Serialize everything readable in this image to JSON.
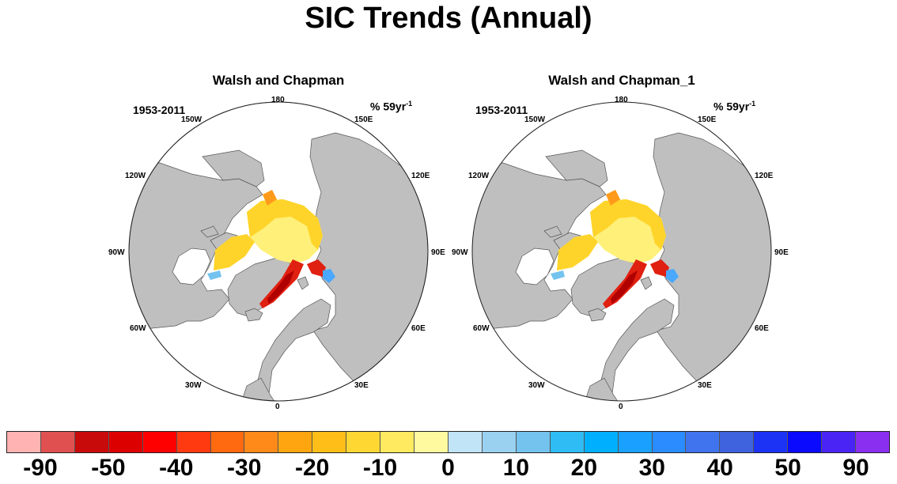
{
  "title": "SIC Trends (Annual)",
  "panels": [
    {
      "title": "Walsh and Chapman",
      "period": "1953-2011",
      "units_text": "% 59yr",
      "units_exp": "-1",
      "lon_labels": {
        "l180": "180",
        "l150w": "150W",
        "l150e": "150E",
        "l120w": "120W",
        "l120e": "120E",
        "l90w": "90W",
        "l90e": "90E",
        "l60w": "60W",
        "l60e": "60E",
        "l30w": "30W",
        "l30e": "30E",
        "l0": "0"
      }
    },
    {
      "title": "Walsh and Chapman_1",
      "period": "1953-2011",
      "units_text": "% 59yr",
      "units_exp": "-1",
      "lon_labels": {
        "l180": "180",
        "l150w": "150W",
        "l150e": "150E",
        "l120w": "120W",
        "l120e": "120E",
        "l90w": "90W",
        "l90e": "90E",
        "l60w": "60W",
        "l60e": "60E",
        "l30w": "30W",
        "l30e": "30E",
        "l0": "0"
      }
    }
  ],
  "colors": {
    "land": "#bfbfbf",
    "ocean": "#ffffff",
    "ice_light": "#fff07a",
    "ice_mid": "#ffd42a",
    "ice_orange": "#ff9a1a",
    "ice_red": "#e02010",
    "ice_dark": "#b00000",
    "ice_blue": "#4aa8ff"
  },
  "colorbar": {
    "colors": [
      "#ffb3b3",
      "#e05050",
      "#c80a0a",
      "#dd0000",
      "#ff0000",
      "#ff3a10",
      "#ff6a10",
      "#ff8a1a",
      "#ffa510",
      "#ffbf18",
      "#ffd732",
      "#ffea60",
      "#fffaa0",
      "#c2e4f7",
      "#9bd1f0",
      "#74c3ee",
      "#2fbcf5",
      "#00b0ff",
      "#1aa0ff",
      "#2a8cff",
      "#3f74ee",
      "#3f62de",
      "#1c32f5",
      "#0a0aff",
      "#4a24f4",
      "#8a2ef0"
    ],
    "labels": [
      "-90",
      "-50",
      "-40",
      "-30",
      "-20",
      "-10",
      "0",
      "10",
      "20",
      "30",
      "40",
      "50",
      "90"
    ]
  }
}
